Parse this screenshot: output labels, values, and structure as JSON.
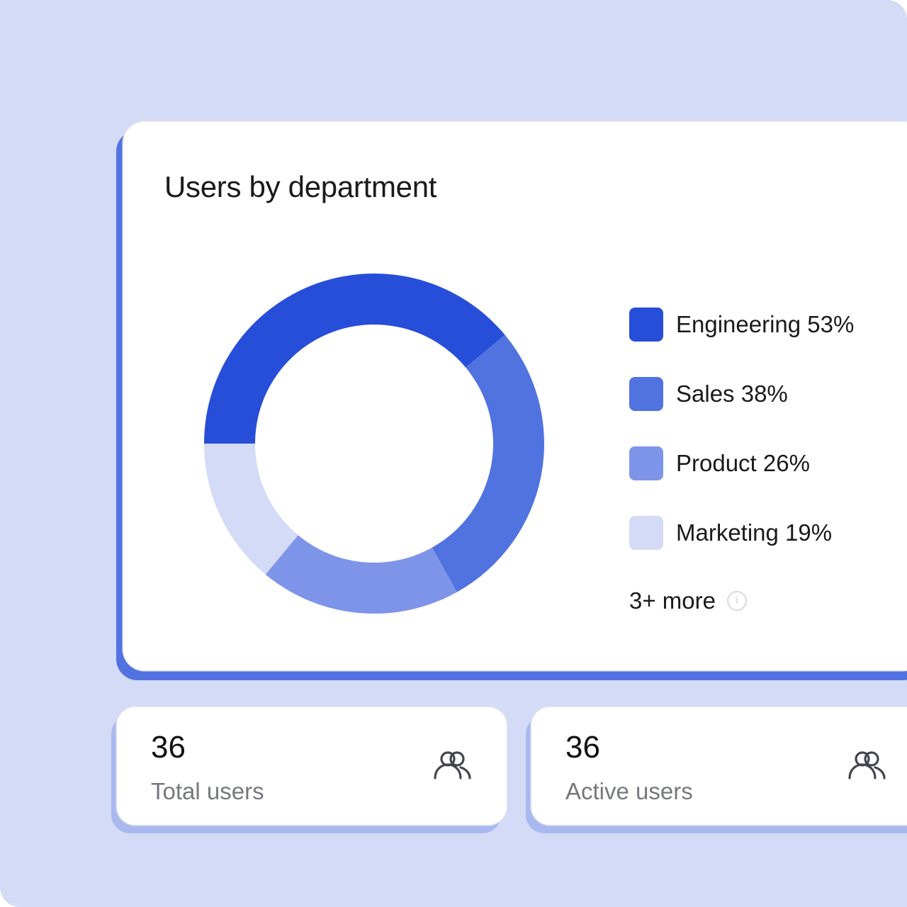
{
  "card": {
    "title": "Users by department",
    "more_label": "3+ more",
    "info_icon": "info-icon"
  },
  "legend": [
    {
      "label": "Engineering 53%",
      "color": "#274ED8"
    },
    {
      "label": "Sales 38%",
      "color": "#5173E0"
    },
    {
      "label": "Product 26%",
      "color": "#7E94E8"
    },
    {
      "label": "Marketing 19%",
      "color": "#D4DBF7"
    }
  ],
  "stats": [
    {
      "value": "36",
      "label": "Total users",
      "icon": "users-icon"
    },
    {
      "value": "36",
      "label": "Active users",
      "icon": "users-icon"
    }
  ],
  "colors": {
    "background": "#D4DBF7",
    "card_shadow": "#5172E0",
    "stat_shadow": "#A9B9F0"
  },
  "chart_data": {
    "type": "pie",
    "variant": "donut",
    "title": "Users by department",
    "categories": [
      "Engineering",
      "Sales",
      "Product",
      "Marketing"
    ],
    "values": [
      53,
      38,
      26,
      19
    ],
    "value_unit": "%",
    "colors": [
      "#274ED8",
      "#5173E0",
      "#7E94E8",
      "#D4DBF7"
    ],
    "legend_position": "right",
    "annotations": [
      "3+ more"
    ]
  }
}
